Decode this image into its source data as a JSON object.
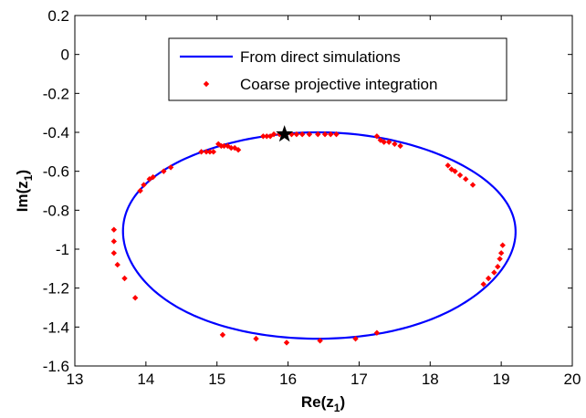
{
  "chart_data": {
    "type": "scatter",
    "xlabel": "Re(z",
    "xlabel_sub": "1",
    "xlabel_close": ")",
    "ylabel": "Im(z",
    "ylabel_sub": "1",
    "ylabel_close": ")",
    "xlim": [
      13,
      20
    ],
    "ylim": [
      -1.6,
      0.2
    ],
    "xticks": [
      13,
      14,
      15,
      16,
      17,
      18,
      19,
      20
    ],
    "yticks": [
      0.2,
      0,
      -0.2,
      -0.4,
      -0.6,
      -0.8,
      -1,
      -1.2,
      -1.4,
      -1.6
    ],
    "xtick_labels": [
      "13",
      "14",
      "15",
      "16",
      "17",
      "18",
      "19",
      "20"
    ],
    "ytick_labels": [
      "0.2",
      "0",
      "-0.2",
      "-0.4",
      "-0.6",
      "-0.8",
      "-1",
      "-1.2",
      "-1.4",
      "-1.6"
    ],
    "grid": false,
    "legend_position": "top-center",
    "series": [
      {
        "name": "From direct simulations",
        "style": "line",
        "color": "#0000ff",
        "shape": "ellipse",
        "center": [
          16.42,
          -0.93
        ],
        "semi_axes": [
          2.76,
          0.53
        ]
      },
      {
        "name": "Coarse projective integration",
        "style": "marker",
        "marker": "diamond",
        "color": "#ff0000",
        "x": [
          15.8,
          15.88,
          15.95,
          16.05,
          16.12,
          16.2,
          16.3,
          16.42,
          16.52,
          16.6,
          16.68,
          15.65,
          15.7,
          15.75,
          15.02,
          15.06,
          15.1,
          15.15,
          15.2,
          15.25,
          15.3,
          14.78,
          14.85,
          14.9,
          14.95,
          14.35,
          14.25,
          14.1,
          14.05,
          13.97,
          13.92,
          13.55,
          13.55,
          13.55,
          13.6,
          13.7,
          13.85,
          17.25,
          17.3,
          17.35,
          17.42,
          17.5,
          17.58,
          18.25,
          18.3,
          18.35,
          18.42,
          18.5,
          18.6,
          19.02,
          19.0,
          18.98,
          18.95,
          18.9,
          18.82,
          18.75,
          17.25,
          16.95,
          16.45,
          15.98,
          15.55,
          15.08
        ],
        "y": [
          -0.41,
          -0.41,
          -0.41,
          -0.41,
          -0.41,
          -0.41,
          -0.41,
          -0.41,
          -0.41,
          -0.41,
          -0.41,
          -0.42,
          -0.42,
          -0.42,
          -0.46,
          -0.47,
          -0.47,
          -0.47,
          -0.48,
          -0.48,
          -0.49,
          -0.5,
          -0.5,
          -0.5,
          -0.5,
          -0.58,
          -0.6,
          -0.63,
          -0.64,
          -0.67,
          -0.7,
          -0.9,
          -0.96,
          -1.02,
          -1.08,
          -1.15,
          -1.25,
          -0.42,
          -0.44,
          -0.45,
          -0.45,
          -0.46,
          -0.47,
          -0.57,
          -0.59,
          -0.6,
          -0.62,
          -0.64,
          -0.67,
          -0.98,
          -1.02,
          -1.05,
          -1.09,
          -1.12,
          -1.15,
          -1.18,
          -1.43,
          -1.46,
          -1.47,
          -1.48,
          -1.46,
          -1.44
        ]
      },
      {
        "name": "",
        "style": "marker",
        "marker": "star",
        "color": "#000000",
        "x": [
          15.95
        ],
        "y": [
          -0.41
        ]
      }
    ],
    "legend": [
      {
        "label": "From direct simulations",
        "style": "line",
        "color": "#0000ff"
      },
      {
        "label": "Coarse projective integration",
        "style": "marker",
        "color": "#ff0000"
      }
    ]
  }
}
